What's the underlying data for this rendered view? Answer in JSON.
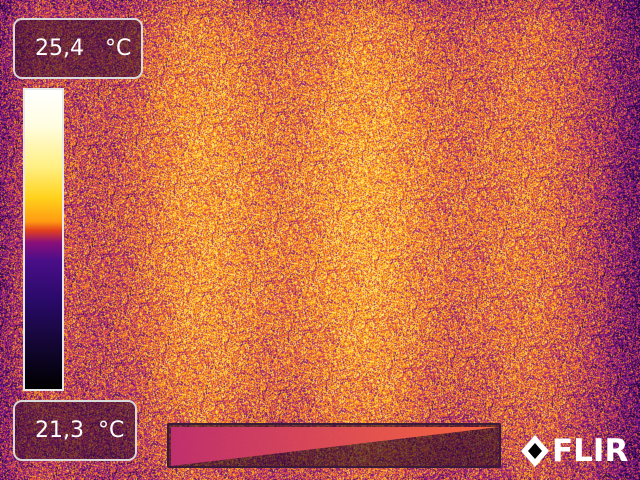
{
  "display": {
    "max_temp": {
      "value": "25,4",
      "unit": "°C"
    },
    "min_temp": {
      "value": "21,3",
      "unit": "°C"
    },
    "palette": "iron",
    "palette_colors": [
      "#000000",
      "#2a0a6a",
      "#8a0f7a",
      "#e2401e",
      "#ff9a12",
      "#ffd21c",
      "#ffef80",
      "#ffffff"
    ],
    "span_indicator_colors": [
      "#c43070",
      "#ff6a3c"
    ]
  },
  "brand": {
    "name": "FLIR",
    "logo_icon": "flir-diamond-icon"
  }
}
